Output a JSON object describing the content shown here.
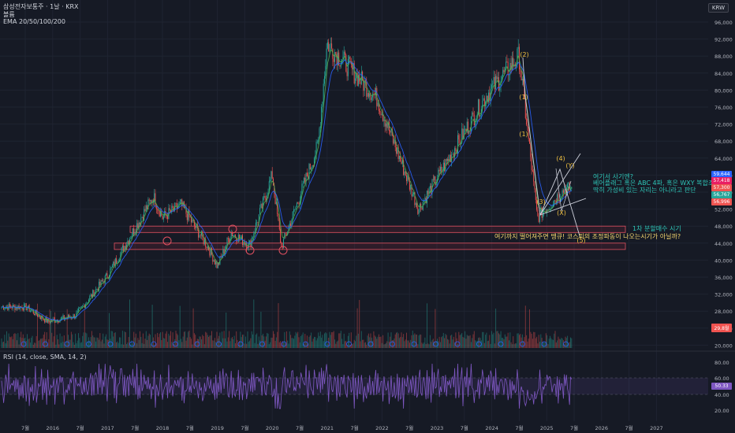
{
  "header": {
    "symbol_line": "삼성전자보통주 · 1날 · KRX",
    "volume_label": "볼륨",
    "ema_label": "EMA 20/50/100/200",
    "currency_badge": "KRW"
  },
  "colors": {
    "background": "#161a25",
    "up": "#26a69a",
    "down": "#ef5350",
    "ema20": "#4caf50",
    "ema50": "#2962ff",
    "rsi": "#7e57c2",
    "wave_label": "#f0c040",
    "zone_border": "#e05060"
  },
  "price_axis_labels": [
    "96,000",
    "92,000",
    "88,000",
    "84,000",
    "80,000",
    "76,000",
    "72,000",
    "68,000",
    "64,000",
    "60,000",
    "56,000",
    "52,000",
    "48,000",
    "44,000",
    "40,000",
    "36,000",
    "32,000",
    "28,000",
    "24,000",
    "20,000"
  ],
  "price_tags": {
    "tag1": "59,644",
    "tag2": "57,418",
    "tag3": "57,300",
    "tag4": "56,767",
    "tag5": "56,996",
    "tag6": "29,8월"
  },
  "rsi": {
    "label": "RSI (14, close, SMA, 14, 2)",
    "axis_labels": [
      "80.00",
      "60.00",
      "40.00",
      "20.00"
    ],
    "current_value": "50.33"
  },
  "time_axis_labels": [
    "7월",
    "2016",
    "7월",
    "2017",
    "7월",
    "2018",
    "7월",
    "2019",
    "7월",
    "2020",
    "7월",
    "2021",
    "7월",
    "2022",
    "7월",
    "2023",
    "7월",
    "2024",
    "7월",
    "2025",
    "7월",
    "2026",
    "7월",
    "2027"
  ],
  "annotations": {
    "comment1_line1": "여기서 사기엔?",
    "comment1_line2": "베어플래그 혹은 ABC 4파, 혹은 WXY 복합조정",
    "comment1_line3": "딱히 가성비 있는 자리는 아니라고 판단",
    "comment2": "1차 분할매수 시기",
    "comment3": "여기까지 떨어져주면 땡큐! 코스피의 조정파동이 나오는시기가 아닐까?"
  },
  "wave_labels": {
    "w2": "(2)",
    "w1": "(1)",
    "w3": "(3)",
    "w4": "(4)",
    "w5": "(5)",
    "wY": "(Y)",
    "wX": "(X)",
    "w1s": "(1)"
  },
  "chart_data": {
    "type": "candlestick",
    "symbol": "삼성전자보통주",
    "interval": "1날",
    "exchange": "KRX",
    "ylim": [
      20000,
      98000
    ],
    "price_path": [
      {
        "t": "2015-07",
        "price": 29000
      },
      {
        "t": "2015-12",
        "price": 25500
      },
      {
        "t": "2016-06",
        "price": 27000
      },
      {
        "t": "2017-01",
        "price": 36500
      },
      {
        "t": "2017-11",
        "price": 55000
      },
      {
        "t": "2018-01",
        "price": 50000
      },
      {
        "t": "2018-05",
        "price": 53000
      },
      {
        "t": "2018-11",
        "price": 43000
      },
      {
        "t": "2019-01",
        "price": 38500
      },
      {
        "t": "2019-04",
        "price": 46500
      },
      {
        "t": "2019-08",
        "price": 43500
      },
      {
        "t": "2020-01",
        "price": 60000
      },
      {
        "t": "2020-03",
        "price": 43000
      },
      {
        "t": "2020-11",
        "price": 67000
      },
      {
        "t": "2021-01",
        "price": 91000
      },
      {
        "t": "2021-12",
        "price": 78000
      },
      {
        "t": "2022-09",
        "price": 52000
      },
      {
        "t": "2023-12",
        "price": 79000
      },
      {
        "t": "2024-07",
        "price": 88000
      },
      {
        "t": "2024-11",
        "price": 50000
      },
      {
        "t": "2025-05",
        "price": 56767
      }
    ],
    "support_zones": [
      {
        "low": 46500,
        "high": 48000
      },
      {
        "low": 42500,
        "high": 44000
      }
    ],
    "indicators": [
      "EMA 20",
      "EMA 50",
      "EMA 100",
      "EMA 200",
      "Volume",
      "RSI 14"
    ],
    "rsi_levels": [
      20,
      40,
      60,
      80
    ],
    "rsi_last": 50.33
  }
}
